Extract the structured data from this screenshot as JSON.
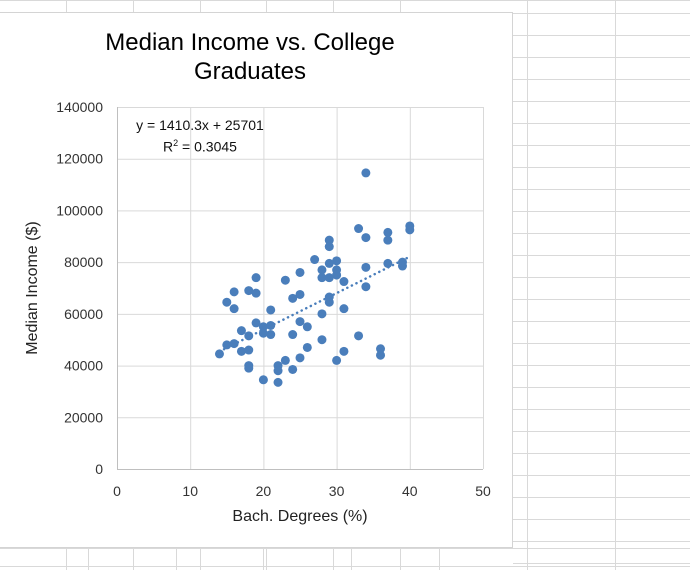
{
  "chart_data": {
    "type": "scatter",
    "title": "Median Income vs. College Graduates",
    "xlabel": "Bach. Degrees (%)",
    "ylabel": "Median Income ($)",
    "xlim": [
      0,
      50
    ],
    "ylim": [
      0,
      140000
    ],
    "x_ticks": [
      0,
      10,
      20,
      30,
      40,
      50
    ],
    "y_ticks": [
      0,
      20000,
      40000,
      60000,
      80000,
      100000,
      120000,
      140000
    ],
    "grid": true,
    "legend": "none",
    "marker_color": "#4a7ebb",
    "trendline": {
      "type": "linear",
      "style": "dotted",
      "equation": "y = 1410.3x + 25701",
      "r_squared": "R² = 0.3045",
      "slope": 1410.3,
      "intercept": 25701,
      "x_range": [
        14,
        40
      ]
    },
    "points": [
      [
        14,
        44500
      ],
      [
        15,
        48000
      ],
      [
        15,
        64500
      ],
      [
        16,
        48500
      ],
      [
        16,
        62000
      ],
      [
        16,
        68500
      ],
      [
        17,
        45500
      ],
      [
        17,
        53500
      ],
      [
        18,
        46000
      ],
      [
        18,
        51500
      ],
      [
        18,
        40000
      ],
      [
        18,
        39000
      ],
      [
        18,
        69000
      ],
      [
        19,
        68000
      ],
      [
        19,
        74000
      ],
      [
        19,
        56500
      ],
      [
        20,
        55000
      ],
      [
        20,
        52500
      ],
      [
        20,
        34500
      ],
      [
        21,
        61500
      ],
      [
        21,
        55500
      ],
      [
        21,
        52000
      ],
      [
        22,
        40000
      ],
      [
        22,
        38000
      ],
      [
        22,
        33500
      ],
      [
        23,
        73000
      ],
      [
        23,
        42000
      ],
      [
        24,
        66000
      ],
      [
        24,
        52000
      ],
      [
        24,
        38500
      ],
      [
        25,
        76000
      ],
      [
        25,
        67500
      ],
      [
        25,
        57000
      ],
      [
        25,
        43000
      ],
      [
        26,
        55000
      ],
      [
        26,
        47000
      ],
      [
        27,
        81000
      ],
      [
        28,
        77000
      ],
      [
        28,
        74000
      ],
      [
        28,
        60000
      ],
      [
        28,
        50000
      ],
      [
        29,
        88500
      ],
      [
        29,
        86000
      ],
      [
        29,
        79500
      ],
      [
        29,
        74000
      ],
      [
        29,
        66500
      ],
      [
        29,
        64500
      ],
      [
        30,
        80500
      ],
      [
        30,
        77000
      ],
      [
        30,
        75000
      ],
      [
        30,
        42000
      ],
      [
        31,
        72500
      ],
      [
        31,
        62000
      ],
      [
        31,
        45500
      ],
      [
        33,
        93000
      ],
      [
        33,
        51500
      ],
      [
        34,
        114500
      ],
      [
        34,
        89500
      ],
      [
        34,
        78000
      ],
      [
        34,
        70500
      ],
      [
        36,
        46500
      ],
      [
        36,
        44000
      ],
      [
        37,
        91500
      ],
      [
        37,
        88500
      ],
      [
        37,
        79500
      ],
      [
        39,
        80000
      ],
      [
        39,
        78500
      ],
      [
        40,
        94000
      ],
      [
        40,
        92500
      ]
    ]
  },
  "chart": {
    "title": "Median Income vs. College Graduates",
    "x_axis_title": "Bach. Degrees (%)",
    "y_axis_title": "Median Income ($)",
    "equation": "y = 1410.3x + 25701",
    "r2_prefix": "R",
    "r2_rest": " = 0.3045",
    "x_tick_labels": [
      "0",
      "10",
      "20",
      "30",
      "40",
      "50"
    ],
    "y_tick_labels": [
      "0",
      "20000",
      "40000",
      "60000",
      "80000",
      "100000",
      "120000",
      "140000"
    ]
  }
}
